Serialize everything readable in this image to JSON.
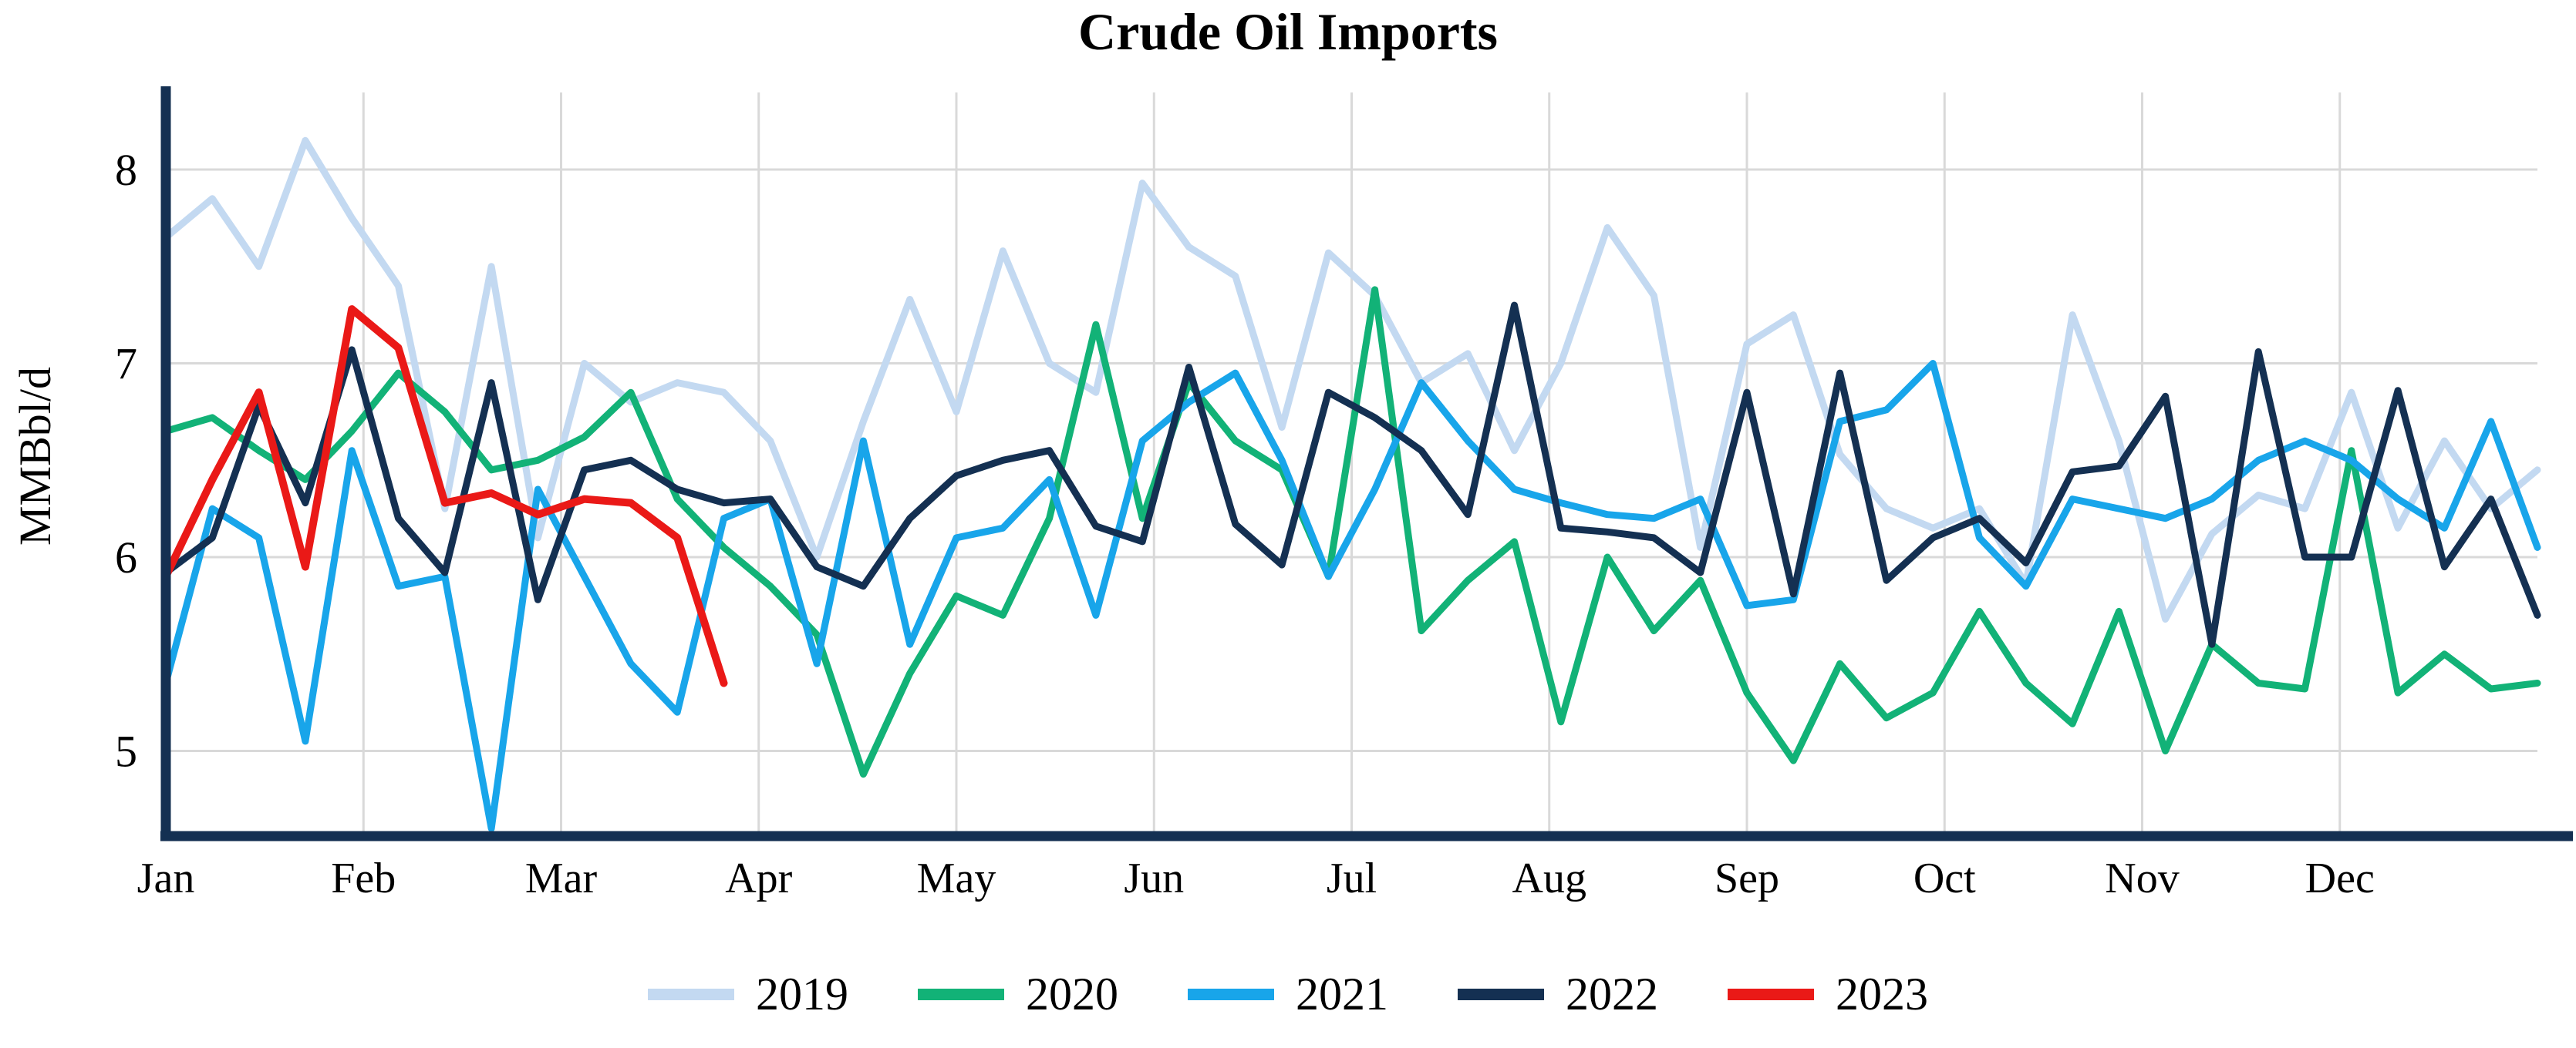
{
  "chart_data": {
    "type": "line",
    "title": "Crude Oil Imports",
    "xlabel": "",
    "ylabel": "MMBbl/d",
    "x_unit": "week-of-year (weekly points, 52 per full year)",
    "categories_months": [
      "Jan",
      "Feb",
      "Mar",
      "Apr",
      "May",
      "Jun",
      "Jul",
      "Aug",
      "Sep",
      "Oct",
      "Nov",
      "Dec"
    ],
    "yticks": [
      8,
      7,
      6,
      5
    ],
    "ylim": [
      4.55,
      8.42
    ],
    "grid": true,
    "legend_position": "bottom",
    "axis_color": "#143052",
    "gridline_color": "#d9d9d9",
    "series": [
      {
        "name": "2019",
        "color": "#c3d9f1",
        "values": [
          7.65,
          7.85,
          7.5,
          8.15,
          7.75,
          7.4,
          6.25,
          7.5,
          6.1,
          7.0,
          6.8,
          6.9,
          6.85,
          6.6,
          6.0,
          6.7,
          7.33,
          6.75,
          7.58,
          7.0,
          6.85,
          7.93,
          7.6,
          7.45,
          6.67,
          7.57,
          7.35,
          6.9,
          7.05,
          6.55,
          7.0,
          7.7,
          7.35,
          6.05,
          7.1,
          7.25,
          6.53,
          6.25,
          6.15,
          6.25,
          5.86,
          7.25,
          6.6,
          5.68,
          6.12,
          6.32,
          6.25,
          6.85,
          6.15,
          6.6,
          6.25,
          6.45
        ]
      },
      {
        "name": "2020",
        "color": "#12b277",
        "values": [
          6.65,
          6.72,
          6.55,
          6.4,
          6.65,
          6.95,
          6.75,
          6.45,
          6.5,
          6.62,
          6.85,
          6.3,
          6.05,
          5.85,
          5.6,
          4.88,
          5.4,
          5.8,
          5.7,
          6.2,
          7.2,
          6.2,
          6.9,
          6.6,
          6.45,
          5.9,
          7.38,
          5.62,
          5.88,
          6.08,
          5.15,
          6.0,
          5.62,
          5.88,
          5.3,
          4.95,
          5.45,
          5.17,
          5.3,
          5.72,
          5.35,
          5.14,
          5.72,
          5.0,
          5.55,
          5.35,
          5.32,
          6.55,
          5.3,
          5.5,
          5.32,
          5.35
        ]
      },
      {
        "name": "2021",
        "color": "#18a5ea",
        "values": [
          5.35,
          6.25,
          6.1,
          5.05,
          6.55,
          5.85,
          5.9,
          4.6,
          6.35,
          5.9,
          5.45,
          5.2,
          6.2,
          6.3,
          5.45,
          6.6,
          5.55,
          6.1,
          6.15,
          6.4,
          5.7,
          6.6,
          6.8,
          6.95,
          6.5,
          5.9,
          6.35,
          6.9,
          6.6,
          6.35,
          6.28,
          6.22,
          6.2,
          6.3,
          5.75,
          5.78,
          6.7,
          6.76,
          7.0,
          6.1,
          5.85,
          6.3,
          6.25,
          6.2,
          6.3,
          6.5,
          6.6,
          6.5,
          6.3,
          6.15,
          6.7,
          6.05
        ]
      },
      {
        "name": "2022",
        "color": "#143052",
        "values": [
          5.92,
          6.1,
          6.78,
          6.28,
          7.07,
          6.2,
          5.92,
          6.9,
          5.78,
          6.45,
          6.5,
          6.35,
          6.28,
          6.3,
          5.95,
          5.85,
          6.2,
          6.42,
          6.5,
          6.55,
          6.16,
          6.08,
          6.98,
          6.17,
          5.96,
          6.85,
          6.72,
          6.55,
          6.22,
          7.3,
          6.15,
          6.13,
          6.1,
          5.92,
          6.85,
          5.81,
          6.95,
          5.88,
          6.1,
          6.2,
          5.97,
          6.44,
          6.47,
          6.83,
          5.55,
          7.06,
          6.0,
          6.0,
          6.86,
          5.95,
          6.3,
          5.7
        ]
      },
      {
        "name": "2023",
        "color": "#ea1917",
        "values": [
          5.9,
          6.4,
          6.85,
          5.95,
          7.28,
          7.08,
          6.28,
          6.33,
          6.22,
          6.3,
          6.28,
          6.1,
          5.35
        ]
      }
    ]
  }
}
